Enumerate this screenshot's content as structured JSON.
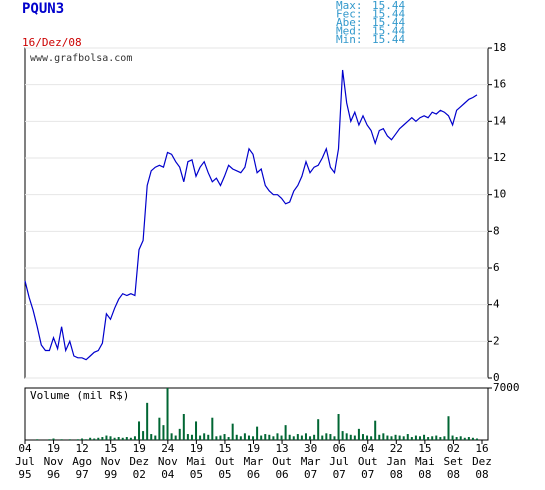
{
  "ticker": "PQUN3",
  "date": "16/Dez/08",
  "watermark": "www.grafbolsa.com",
  "stats": [
    {
      "label": "Max:",
      "value": 15.44
    },
    {
      "label": "Fec:",
      "value": 15.44
    },
    {
      "label": "Abe:",
      "value": 15.44
    },
    {
      "label": "Med:",
      "value": 15.44
    },
    {
      "label": "Min:",
      "value": 15.44
    }
  ],
  "chart_data": [
    {
      "type": "line",
      "color": "#0000cc",
      "x_ticks": [
        {
          "day": "04",
          "month": "Jul",
          "year": "95"
        },
        {
          "day": "19",
          "month": "Nov",
          "year": "96"
        },
        {
          "day": "12",
          "month": "Ago",
          "year": "97"
        },
        {
          "day": "15",
          "month": "Nov",
          "year": "99"
        },
        {
          "day": "19",
          "month": "Dez",
          "year": "02"
        },
        {
          "day": "24",
          "month": "Nov",
          "year": "04"
        },
        {
          "day": "19",
          "month": "Mai",
          "year": "05"
        },
        {
          "day": "15",
          "month": "Out",
          "year": "05"
        },
        {
          "day": "19",
          "month": "Mar",
          "year": "06"
        },
        {
          "day": "13",
          "month": "Out",
          "year": "06"
        },
        {
          "day": "30",
          "month": "Mar",
          "year": "07"
        },
        {
          "day": "06",
          "month": "Jul",
          "year": "07"
        },
        {
          "day": "04",
          "month": "Out",
          "year": "07"
        },
        {
          "day": "22",
          "month": "Jan",
          "year": "08"
        },
        {
          "day": "15",
          "month": "Mai",
          "year": "08"
        },
        {
          "day": "02",
          "month": "Set",
          "year": "08"
        },
        {
          "day": "16",
          "month": "Dez",
          "year": "08"
        }
      ],
      "values": [
        5.3,
        4.4,
        3.7,
        2.8,
        1.8,
        1.5,
        1.5,
        2.2,
        1.6,
        2.8,
        1.5,
        2.0,
        1.2,
        1.1,
        1.1,
        1.0,
        1.2,
        1.4,
        1.5,
        1.9,
        3.5,
        3.2,
        3.8,
        4.3,
        4.6,
        4.5,
        4.6,
        4.5,
        7.0,
        7.5,
        10.5,
        11.3,
        11.5,
        11.6,
        11.5,
        12.3,
        12.2,
        11.8,
        11.5,
        10.7,
        11.8,
        11.9,
        11.0,
        11.5,
        11.8,
        11.2,
        10.7,
        10.9,
        10.5,
        11.0,
        11.6,
        11.4,
        11.3,
        11.2,
        11.5,
        12.5,
        12.2,
        11.2,
        11.4,
        10.5,
        10.2,
        10.0,
        10.0,
        9.8,
        9.5,
        9.6,
        10.2,
        10.5,
        11.0,
        11.8,
        11.2,
        11.5,
        11.6,
        12.0,
        12.5,
        11.5,
        11.2,
        12.5,
        16.8,
        15.0,
        14.0,
        14.5,
        13.8,
        14.3,
        13.8,
        13.5,
        12.8,
        13.5,
        13.6,
        13.2,
        13.0,
        13.3,
        13.6,
        13.8,
        14.0,
        14.2,
        14.0,
        14.2,
        14.3,
        14.2,
        14.5,
        14.4,
        14.6,
        14.5,
        14.3,
        13.8,
        14.6,
        14.8,
        15.0,
        15.2,
        15.3,
        15.44
      ],
      "ylim": [
        0,
        18
      ],
      "yticks": [
        0,
        2,
        4,
        6,
        8,
        10,
        12,
        14,
        16,
        18
      ],
      "grid": true
    },
    {
      "type": "bar",
      "title": "Volume (mil R$)",
      "color": "#006633",
      "values": [
        0,
        0,
        0,
        100,
        0,
        0,
        100,
        200,
        0,
        100,
        0,
        100,
        0,
        100,
        200,
        100,
        300,
        200,
        300,
        400,
        600,
        500,
        300,
        400,
        300,
        400,
        300,
        500,
        2500,
        1200,
        5000,
        800,
        600,
        3000,
        2000,
        7000,
        900,
        600,
        1500,
        3500,
        800,
        700,
        2500,
        600,
        900,
        700,
        3000,
        500,
        600,
        800,
        400,
        2200,
        700,
        500,
        900,
        600,
        500,
        1800,
        600,
        800,
        700,
        500,
        900,
        600,
        2000,
        700,
        500,
        800,
        600,
        900,
        500,
        700,
        2800,
        600,
        900,
        800,
        500,
        3500,
        1200,
        900,
        700,
        600,
        1500,
        800,
        600,
        500,
        2600,
        700,
        900,
        600,
        500,
        700,
        600,
        500,
        800,
        400,
        600,
        500,
        700,
        400,
        500,
        600,
        400,
        500,
        3200,
        600,
        400,
        500,
        300,
        400,
        300,
        200
      ],
      "ylim": [
        0,
        7000
      ],
      "yticks": [
        7000
      ]
    }
  ]
}
